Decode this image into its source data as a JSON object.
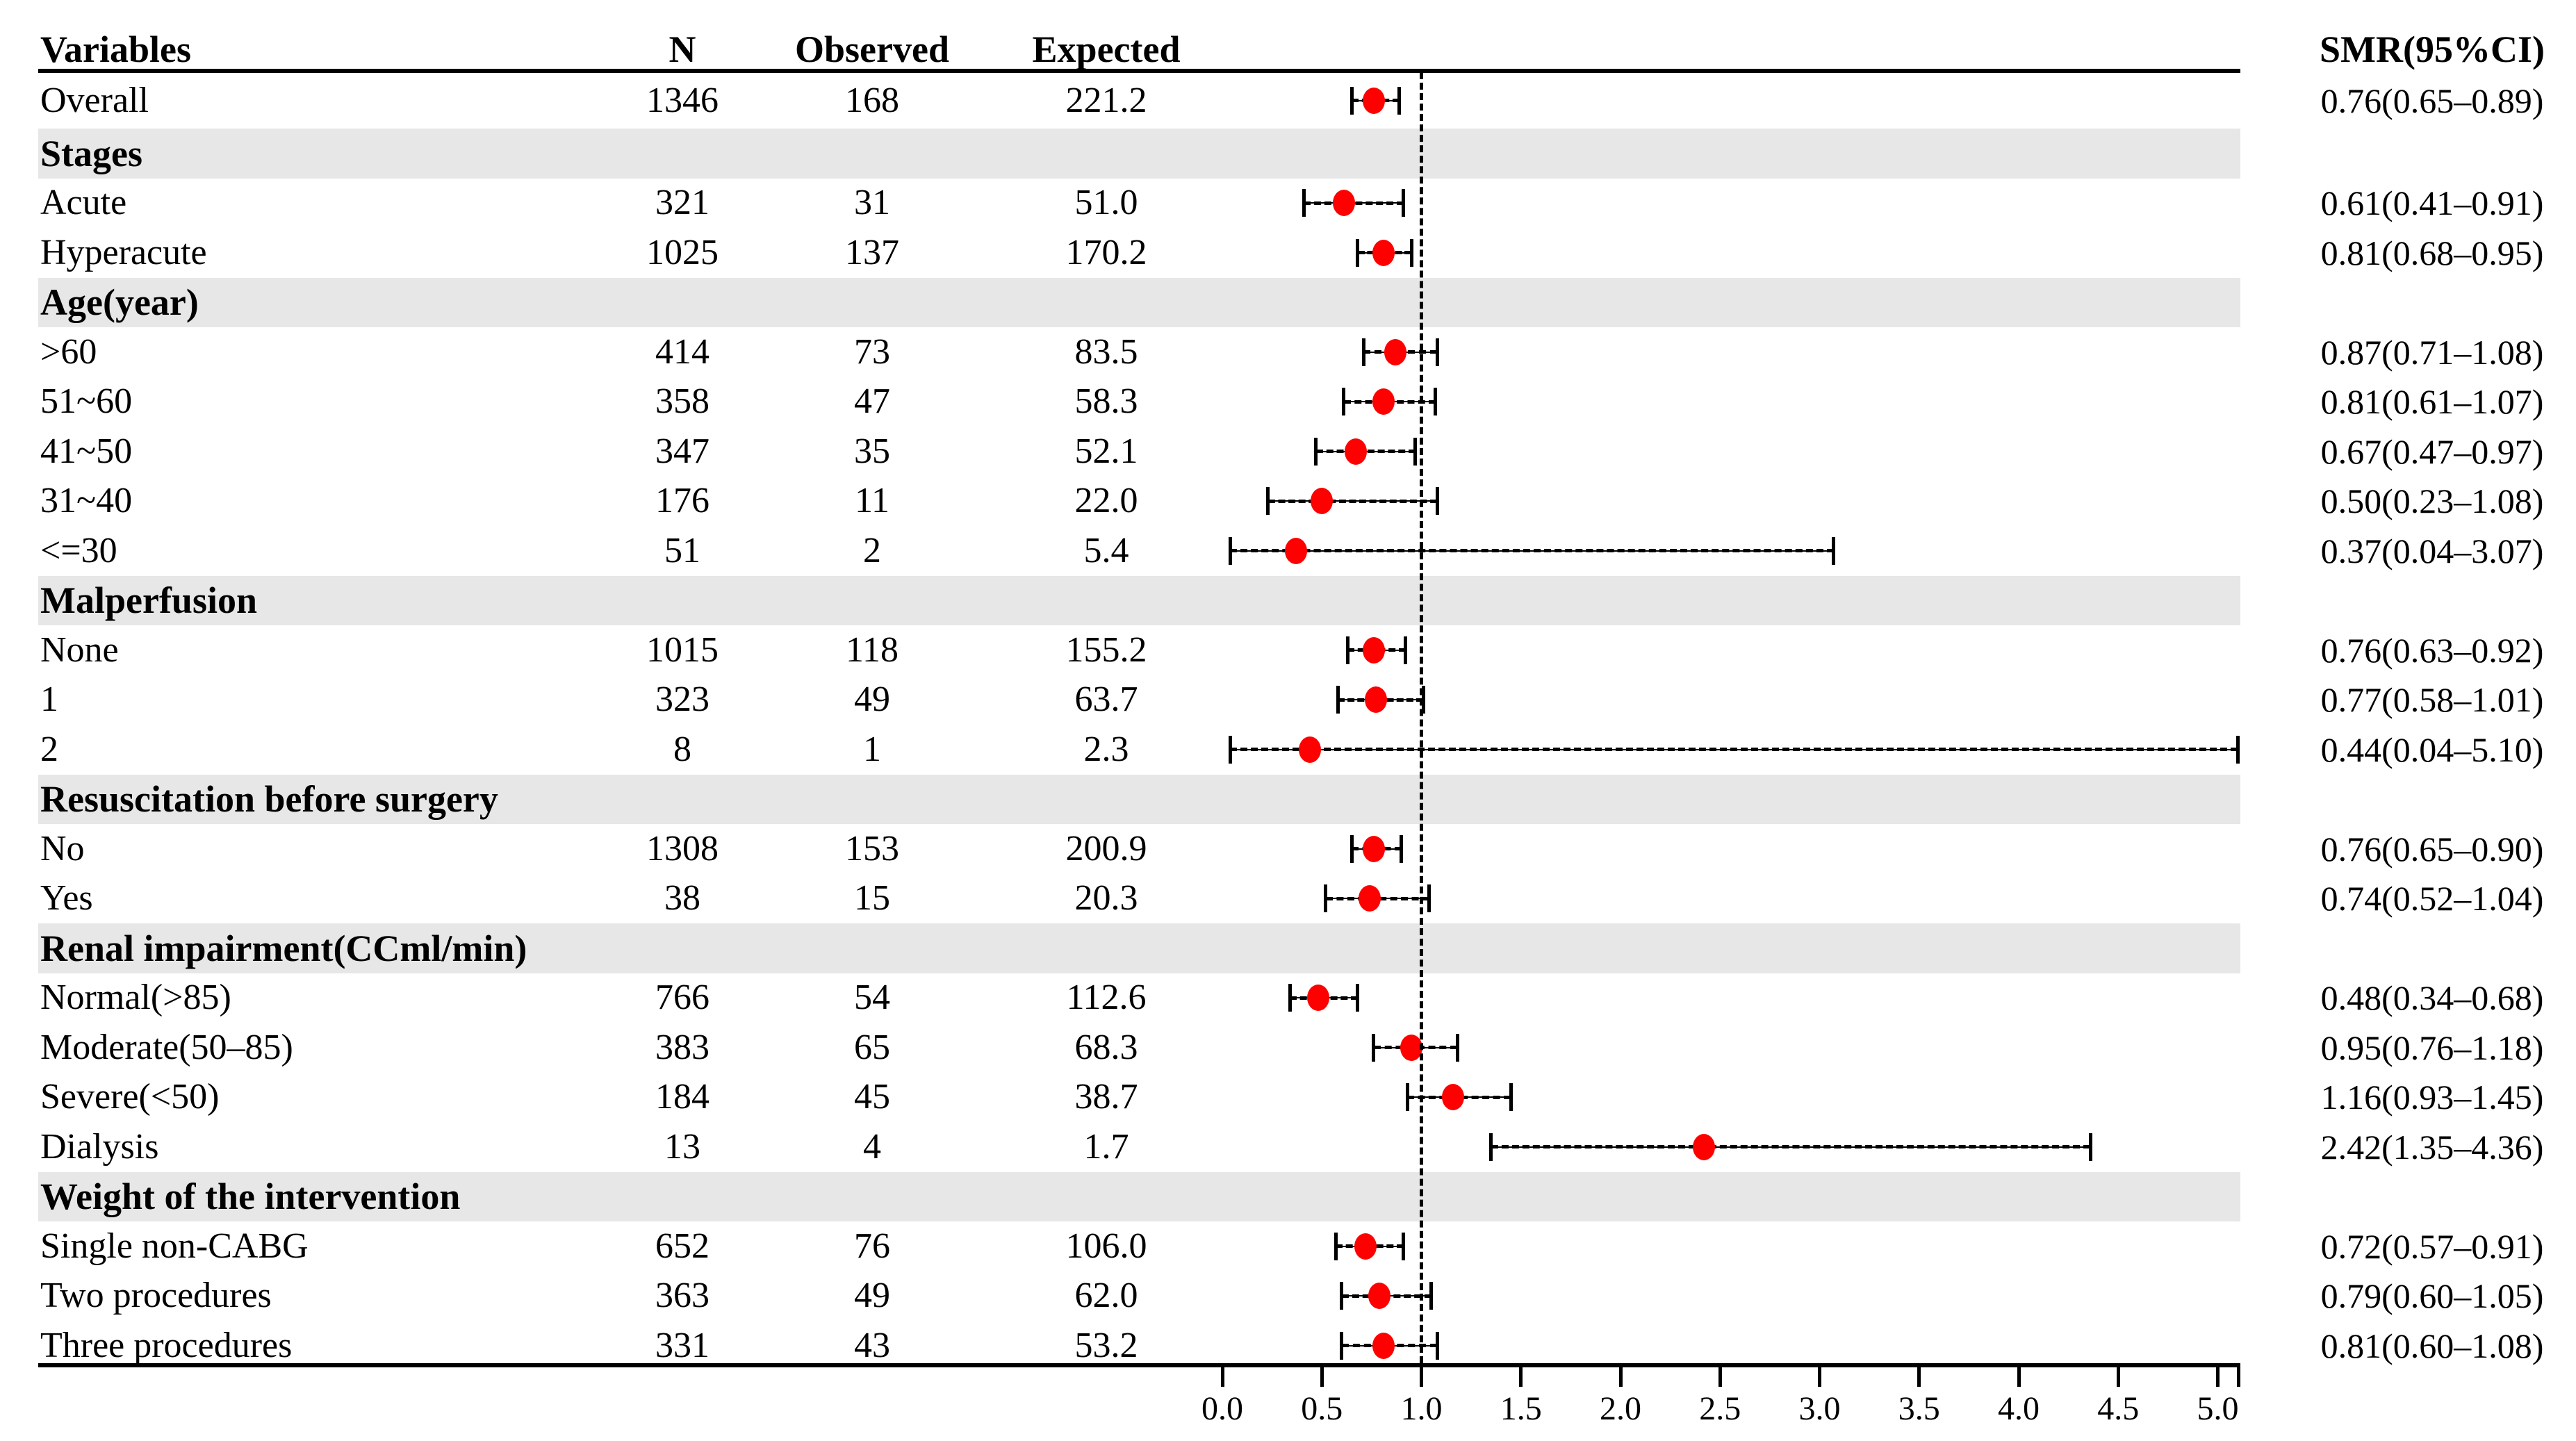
{
  "figure": {
    "kind": "forest-plot",
    "marker_color": "#FF0000",
    "band_color": "#E7E7E7",
    "line_color": "#000000"
  },
  "header": {
    "variables": "Variables",
    "n": "N",
    "observed": "Observed",
    "expected": "Expected",
    "smr": "SMR(95%CI)"
  },
  "chart_data": {
    "type": "scatter",
    "subtype": "forest-plot",
    "title": "",
    "xlabel": "",
    "ylabel": "",
    "xlim": [
      0,
      5.1
    ],
    "x_ticks": [
      {
        "value": 0.0,
        "label": "0.0"
      },
      {
        "value": 0.5,
        "label": "0.5"
      },
      {
        "value": 1.0,
        "label": "1.0"
      },
      {
        "value": 1.5,
        "label": "1.5"
      },
      {
        "value": 2.0,
        "label": "2.0"
      },
      {
        "value": 2.5,
        "label": "2.5"
      },
      {
        "value": 3.0,
        "label": "3.0"
      },
      {
        "value": 3.5,
        "label": "3.5"
      },
      {
        "value": 4.0,
        "label": "4.0"
      },
      {
        "value": 4.5,
        "label": "4.5"
      },
      {
        "value": 5.0,
        "label": "5.0"
      }
    ],
    "reference_line_x": 1.0,
    "grid": false,
    "legend": "none",
    "rows": [
      {
        "label": "Overall",
        "section": false,
        "n": "1346",
        "observed": "168",
        "expected": "221.2",
        "smr": 0.76,
        "ci_low": 0.65,
        "ci_high": 0.89,
        "smr_text": "0.76(0.65–0.89)"
      },
      {
        "label": "Stages",
        "section": true
      },
      {
        "label": "Acute",
        "section": false,
        "n": "321",
        "observed": "31",
        "expected": "51.0",
        "smr": 0.61,
        "ci_low": 0.41,
        "ci_high": 0.91,
        "smr_text": "0.61(0.41–0.91)"
      },
      {
        "label": "Hyperacute",
        "section": false,
        "n": "1025",
        "observed": "137",
        "expected": "170.2",
        "smr": 0.81,
        "ci_low": 0.68,
        "ci_high": 0.95,
        "smr_text": "0.81(0.68–0.95)"
      },
      {
        "label": "Age(year)",
        "section": true
      },
      {
        "label": ">60",
        "section": false,
        "n": "414",
        "observed": "73",
        "expected": "83.5",
        "smr": 0.87,
        "ci_low": 0.71,
        "ci_high": 1.08,
        "smr_text": "0.87(0.71–1.08)"
      },
      {
        "label": "51~60",
        "section": false,
        "n": "358",
        "observed": "47",
        "expected": "58.3",
        "smr": 0.81,
        "ci_low": 0.61,
        "ci_high": 1.07,
        "smr_text": "0.81(0.61–1.07)"
      },
      {
        "label": "41~50",
        "section": false,
        "n": "347",
        "observed": "35",
        "expected": "52.1",
        "smr": 0.67,
        "ci_low": 0.47,
        "ci_high": 0.97,
        "smr_text": "0.67(0.47–0.97)"
      },
      {
        "label": "31~40",
        "section": false,
        "n": "176",
        "observed": "11",
        "expected": "22.0",
        "smr": 0.5,
        "ci_low": 0.23,
        "ci_high": 1.08,
        "smr_text": "0.50(0.23–1.08)"
      },
      {
        "label": "<=30",
        "section": false,
        "n": "51",
        "observed": "2",
        "expected": "5.4",
        "smr": 0.37,
        "ci_low": 0.04,
        "ci_high": 3.07,
        "smr_text": "0.37(0.04–3.07)"
      },
      {
        "label": "Malperfusion",
        "section": true
      },
      {
        "label": "None",
        "section": false,
        "n": "1015",
        "observed": "118",
        "expected": "155.2",
        "smr": 0.76,
        "ci_low": 0.63,
        "ci_high": 0.92,
        "smr_text": "0.76(0.63–0.92)"
      },
      {
        "label": "1",
        "section": false,
        "n": "323",
        "observed": "49",
        "expected": "63.7",
        "smr": 0.77,
        "ci_low": 0.58,
        "ci_high": 1.01,
        "smr_text": "0.77(0.58–1.01)"
      },
      {
        "label": "2",
        "section": false,
        "n": "8",
        "observed": "1",
        "expected": "2.3",
        "smr": 0.44,
        "ci_low": 0.04,
        "ci_high": 5.1,
        "smr_text": "0.44(0.04–5.10)"
      },
      {
        "label": "Resuscitation before surgery",
        "section": true
      },
      {
        "label": "No",
        "section": false,
        "n": "1308",
        "observed": "153",
        "expected": "200.9",
        "smr": 0.76,
        "ci_low": 0.65,
        "ci_high": 0.9,
        "smr_text": "0.76(0.65–0.90)"
      },
      {
        "label": "Yes",
        "section": false,
        "n": "38",
        "observed": "15",
        "expected": "20.3",
        "smr": 0.74,
        "ci_low": 0.52,
        "ci_high": 1.04,
        "smr_text": "0.74(0.52–1.04)"
      },
      {
        "label": "Renal impairment(CCml/min)",
        "section": true
      },
      {
        "label": "Normal(>85)",
        "section": false,
        "n": "766",
        "observed": "54",
        "expected": "112.6",
        "smr": 0.48,
        "ci_low": 0.34,
        "ci_high": 0.68,
        "smr_text": "0.48(0.34–0.68)"
      },
      {
        "label": "Moderate(50–85)",
        "section": false,
        "n": "383",
        "observed": "65",
        "expected": "68.3",
        "smr": 0.95,
        "ci_low": 0.76,
        "ci_high": 1.18,
        "smr_text": "0.95(0.76–1.18)"
      },
      {
        "label": "Severe(<50)",
        "section": false,
        "n": "184",
        "observed": "45",
        "expected": "38.7",
        "smr": 1.16,
        "ci_low": 0.93,
        "ci_high": 1.45,
        "smr_text": "1.16(0.93–1.45)"
      },
      {
        "label": "Dialysis",
        "section": false,
        "n": "13",
        "observed": "4",
        "expected": "1.7",
        "smr": 2.42,
        "ci_low": 1.35,
        "ci_high": 4.36,
        "smr_text": "2.42(1.35–4.36)"
      },
      {
        "label": "Weight of the intervention",
        "section": true
      },
      {
        "label": "Single non-CABG",
        "section": false,
        "n": "652",
        "observed": "76",
        "expected": "106.0",
        "smr": 0.72,
        "ci_low": 0.57,
        "ci_high": 0.91,
        "smr_text": "0.72(0.57–0.91)"
      },
      {
        "label": "Two procedures",
        "section": false,
        "n": "363",
        "observed": "49",
        "expected": "62.0",
        "smr": 0.79,
        "ci_low": 0.6,
        "ci_high": 1.05,
        "smr_text": "0.79(0.60–1.05)"
      },
      {
        "label": "Three procedures",
        "section": false,
        "n": "331",
        "observed": "43",
        "expected": "53.2",
        "smr": 0.81,
        "ci_low": 0.6,
        "ci_high": 1.08,
        "smr_text": "0.81(0.60–1.08)"
      }
    ]
  }
}
